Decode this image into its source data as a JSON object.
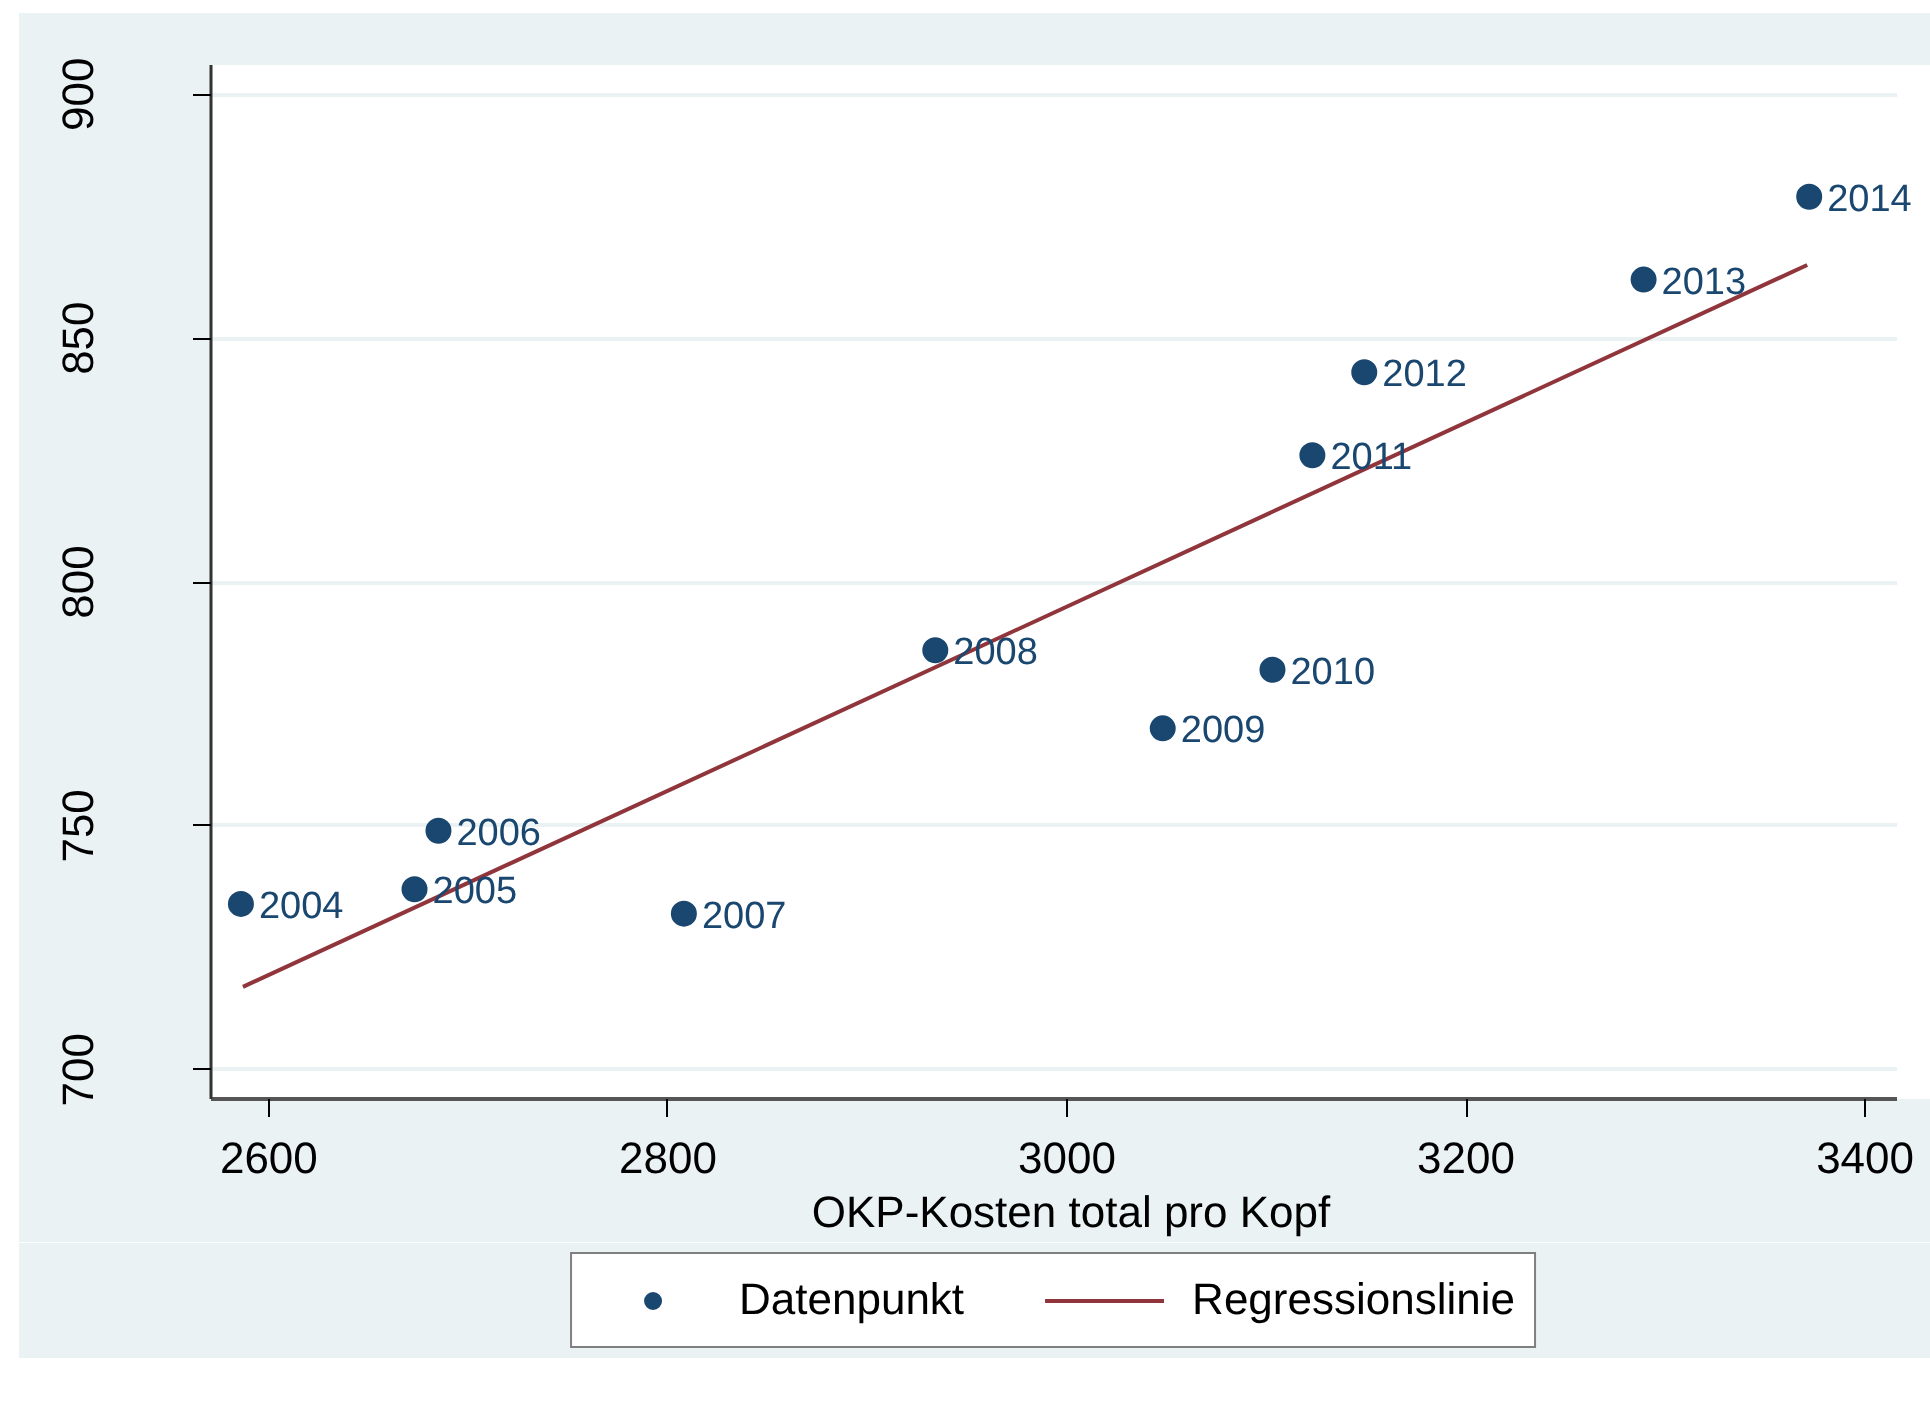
{
  "chart_data": {
    "type": "scatter",
    "xlabel": "OKP-Kosten total pro Kopf",
    "xlim": [
      2571,
      3416
    ],
    "ylim": [
      694,
      906
    ],
    "xticks": [
      2600,
      2800,
      3000,
      3200,
      3400
    ],
    "yticks": [
      700,
      750,
      800,
      850,
      900
    ],
    "grid": "y",
    "legend": "bottom",
    "x": [
      2586,
      2673,
      2685,
      2808,
      2934,
      3048,
      3103,
      3123,
      3149,
      3289,
      3372
    ],
    "series": [
      {
        "name": "Datenpunkt",
        "color": "#1a476f",
        "marker": "circle",
        "values": [
          734,
          737,
          749,
          732,
          786,
          770,
          782,
          826,
          843,
          862,
          879
        ]
      },
      {
        "name": "Regressionslinie",
        "type": "line",
        "color": "#90353b",
        "marker": "none",
        "x": [
          2587,
          3371
        ],
        "values": [
          717,
          865
        ]
      }
    ],
    "annotations": [
      {
        "text": "2004",
        "x": 2586,
        "y": 734
      },
      {
        "text": "2005",
        "x": 2673,
        "y": 737
      },
      {
        "text": "2006",
        "x": 2685,
        "y": 749
      },
      {
        "text": "2007",
        "x": 2808,
        "y": 732
      },
      {
        "text": "2008",
        "x": 2934,
        "y": 786
      },
      {
        "text": "2009",
        "x": 3048,
        "y": 770
      },
      {
        "text": "2010",
        "x": 3103,
        "y": 782
      },
      {
        "text": "2011",
        "x": 3123,
        "y": 826
      },
      {
        "text": "2012",
        "x": 3149,
        "y": 843
      },
      {
        "text": "2013",
        "x": 3289,
        "y": 862
      },
      {
        "text": "2014",
        "x": 3372,
        "y": 879
      }
    ]
  }
}
